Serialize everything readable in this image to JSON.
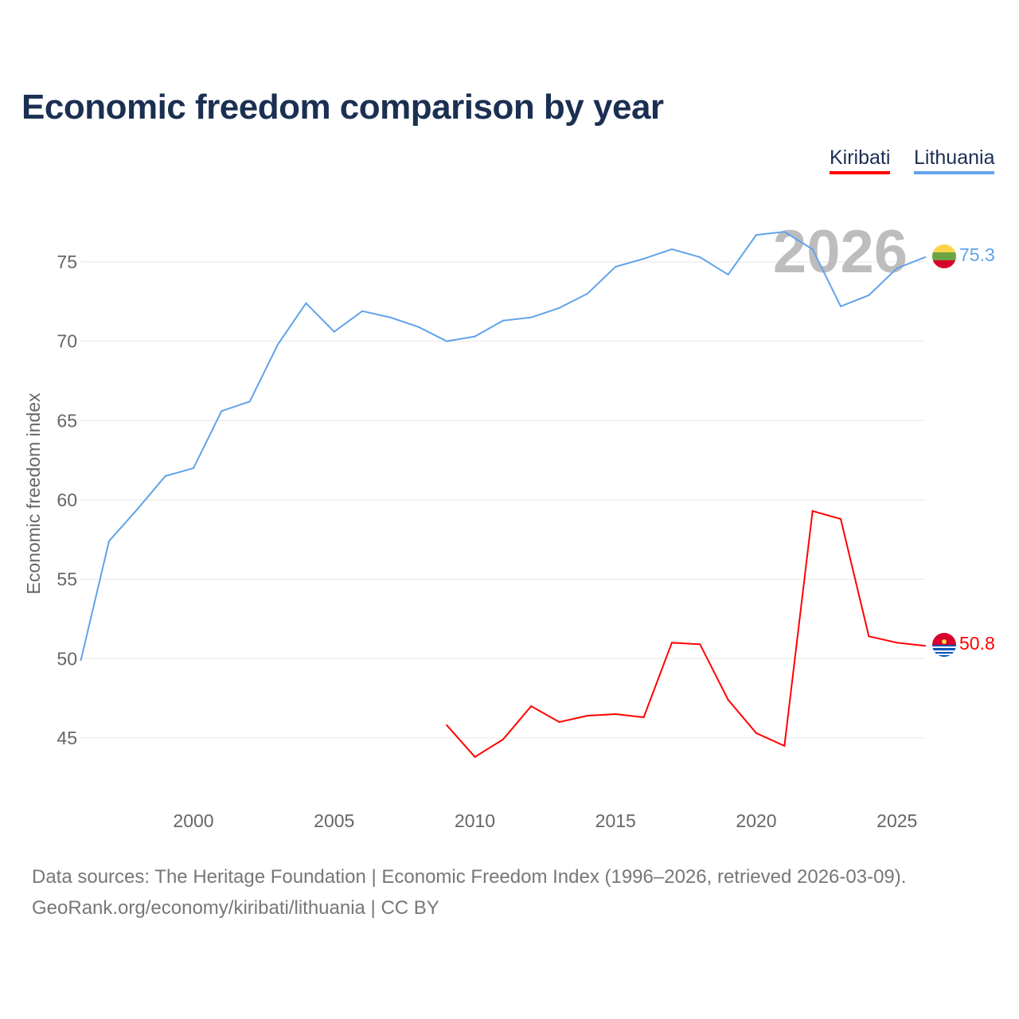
{
  "chart_data": {
    "type": "line",
    "title": "Economic freedom comparison by year",
    "xlabel": "",
    "ylabel": "Economic freedom index",
    "xlim": [
      1996,
      2026
    ],
    "ylim": [
      41,
      78
    ],
    "x_ticks": [
      2000,
      2005,
      2010,
      2015,
      2020,
      2025
    ],
    "y_ticks": [
      45,
      50,
      55,
      60,
      65,
      70,
      75
    ],
    "grid": true,
    "legend_position": "top-right",
    "year_watermark": "2026",
    "series": [
      {
        "name": "Kiribati",
        "color": "#ff0000",
        "end_label": "50.8",
        "flag": "kiribati-flag",
        "x": [
          2009,
          2010,
          2011,
          2012,
          2013,
          2014,
          2015,
          2016,
          2017,
          2018,
          2019,
          2020,
          2021,
          2022,
          2023,
          2024,
          2025,
          2026
        ],
        "values": [
          45.8,
          43.8,
          44.9,
          47.0,
          46.0,
          46.4,
          46.5,
          46.3,
          51.0,
          50.9,
          47.4,
          45.3,
          44.5,
          59.3,
          58.8,
          51.4,
          51.0,
          50.8
        ]
      },
      {
        "name": "Lithuania",
        "color": "#62a3ea",
        "end_label": "75.3",
        "flag": "lithuania-flag",
        "x": [
          1996,
          1997,
          1998,
          1999,
          2000,
          2001,
          2002,
          2003,
          2004,
          2005,
          2006,
          2007,
          2008,
          2009,
          2010,
          2011,
          2012,
          2013,
          2014,
          2015,
          2016,
          2017,
          2018,
          2019,
          2020,
          2021,
          2022,
          2023,
          2024,
          2025,
          2026
        ],
        "values": [
          49.9,
          57.4,
          59.4,
          61.5,
          62.0,
          65.6,
          66.2,
          69.8,
          72.4,
          70.6,
          71.9,
          71.5,
          70.9,
          70.0,
          70.3,
          71.3,
          71.5,
          72.1,
          73.0,
          74.7,
          75.2,
          75.8,
          75.3,
          74.2,
          76.7,
          76.9,
          75.8,
          72.2,
          72.9,
          74.6,
          75.3
        ]
      }
    ]
  },
  "footer": {
    "sources": "Data sources: The Heritage Foundation | Economic Freedom Index (1996–2026, retrieved 2026-03-09).",
    "url": "GeoRank.org/economy/kiribati/lithuania | CC BY"
  }
}
